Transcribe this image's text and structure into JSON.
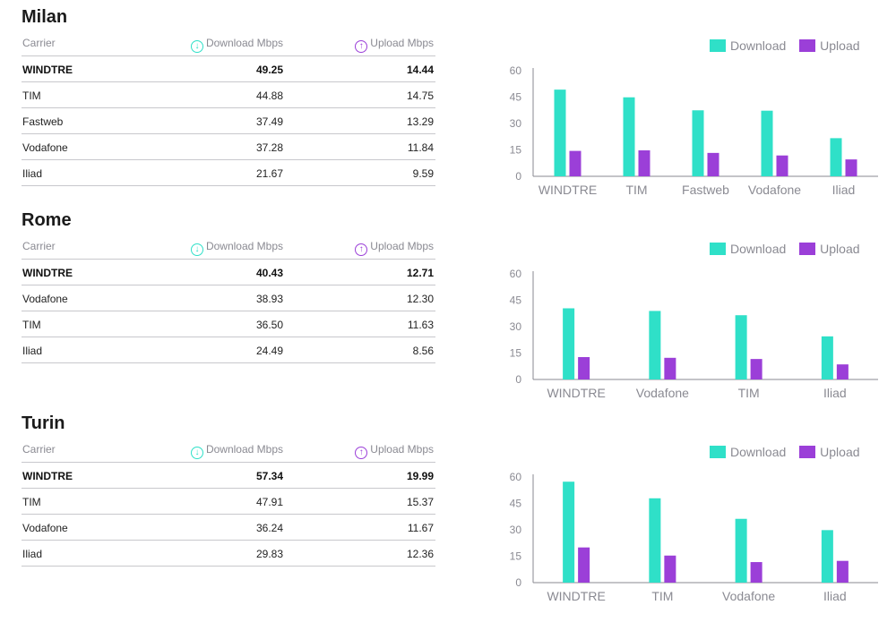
{
  "headers": {
    "carrier": "Carrier",
    "download": "Download Mbps",
    "upload": "Upload Mbps"
  },
  "legend": {
    "download": "Download",
    "upload": "Upload"
  },
  "colors": {
    "download": "#2fe0c8",
    "upload": "#9b3fd8"
  },
  "sections": [
    {
      "city": "Milan",
      "rows": [
        {
          "carrier": "WINDTRE",
          "download": "49.25",
          "upload": "14.44"
        },
        {
          "carrier": "TIM",
          "download": "44.88",
          "upload": "14.75"
        },
        {
          "carrier": "Fastweb",
          "download": "37.49",
          "upload": "13.29"
        },
        {
          "carrier": "Vodafone",
          "download": "37.28",
          "upload": "11.84"
        },
        {
          "carrier": "Iliad",
          "download": "21.67",
          "upload": "9.59"
        }
      ]
    },
    {
      "city": "Rome",
      "rows": [
        {
          "carrier": "WINDTRE",
          "download": "40.43",
          "upload": "12.71"
        },
        {
          "carrier": "Vodafone",
          "download": "38.93",
          "upload": "12.30"
        },
        {
          "carrier": "TIM",
          "download": "36.50",
          "upload": "11.63"
        },
        {
          "carrier": "Iliad",
          "download": "24.49",
          "upload": "8.56"
        }
      ]
    },
    {
      "city": "Turin",
      "rows": [
        {
          "carrier": "WINDTRE",
          "download": "57.34",
          "upload": "19.99"
        },
        {
          "carrier": "TIM",
          "download": "47.91",
          "upload": "15.37"
        },
        {
          "carrier": "Vodafone",
          "download": "36.24",
          "upload": "11.67"
        },
        {
          "carrier": "Iliad",
          "download": "29.83",
          "upload": "12.36"
        }
      ]
    }
  ],
  "chart_data": [
    {
      "type": "bar",
      "categories": [
        "WINDTRE",
        "TIM",
        "Fastweb",
        "Vodafone",
        "Iliad"
      ],
      "series": [
        {
          "name": "Download",
          "values": [
            49.25,
            44.88,
            37.49,
            37.28,
            21.67
          ]
        },
        {
          "name": "Upload",
          "values": [
            14.44,
            14.75,
            13.29,
            11.84,
            9.59
          ]
        }
      ],
      "yticks": [
        0,
        15,
        30,
        45,
        60
      ],
      "ylim": [
        0,
        60
      ],
      "grid": false,
      "legend": "top-right"
    },
    {
      "type": "bar",
      "categories": [
        "WINDTRE",
        "Vodafone",
        "TIM",
        "Iliad"
      ],
      "series": [
        {
          "name": "Download",
          "values": [
            40.43,
            38.93,
            36.5,
            24.49
          ]
        },
        {
          "name": "Upload",
          "values": [
            12.71,
            12.3,
            11.63,
            8.56
          ]
        }
      ],
      "yticks": [
        0,
        15,
        30,
        45,
        60
      ],
      "ylim": [
        0,
        60
      ],
      "grid": false,
      "legend": "top-right"
    },
    {
      "type": "bar",
      "categories": [
        "WINDTRE",
        "TIM",
        "Vodafone",
        "Iliad"
      ],
      "series": [
        {
          "name": "Download",
          "values": [
            57.34,
            47.91,
            36.24,
            29.83
          ]
        },
        {
          "name": "Upload",
          "values": [
            19.99,
            15.37,
            11.67,
            12.36
          ]
        }
      ],
      "yticks": [
        0,
        15,
        30,
        45,
        60
      ],
      "ylim": [
        0,
        60
      ],
      "grid": false,
      "legend": "top-right"
    }
  ]
}
